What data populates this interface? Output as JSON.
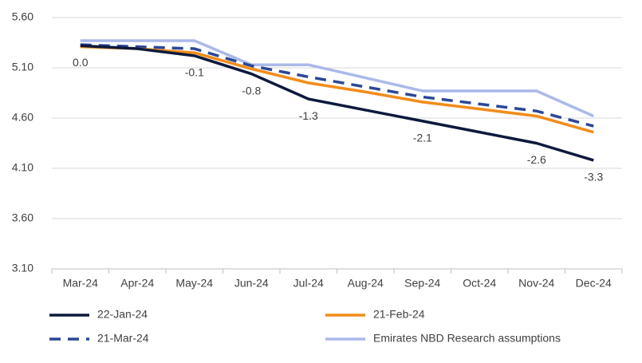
{
  "chart_data": {
    "type": "line",
    "categories": [
      "Mar-24",
      "Apr-24",
      "May-24",
      "Jun-24",
      "Jul-24",
      "Aug-24",
      "Sep-24",
      "Oct-24",
      "Nov-24",
      "Dec-24"
    ],
    "series": [
      {
        "name": "22-Jan-24",
        "color": "#0d1a3d",
        "values": [
          5.32,
          5.29,
          5.22,
          5.04,
          4.79,
          4.68,
          4.57,
          4.46,
          4.35,
          4.18
        ]
      },
      {
        "name": "21-Feb-24",
        "color": "#f28c1a",
        "values": [
          5.31,
          5.29,
          5.25,
          5.09,
          4.95,
          4.86,
          4.76,
          4.69,
          4.62,
          4.46
        ]
      },
      {
        "name": "21-Mar-24",
        "color": "#2b4796",
        "dash": true,
        "values": [
          5.33,
          5.31,
          5.29,
          5.12,
          5.01,
          4.91,
          4.81,
          4.74,
          4.67,
          4.52
        ]
      },
      {
        "name": "Emirates NBD Research assumptions",
        "color": "#aab9e8",
        "values": [
          5.37,
          5.37,
          5.37,
          5.13,
          5.13,
          5.0,
          4.87,
          4.87,
          4.87,
          4.62
        ]
      }
    ],
    "annotations": [
      {
        "x": "Mar-24",
        "text": "0.0"
      },
      {
        "x": "May-24",
        "text": "-0.1"
      },
      {
        "x": "Jun-24",
        "text": "-0.8"
      },
      {
        "x": "Jul-24",
        "text": "-1.3"
      },
      {
        "x": "Sep-24",
        "text": "-2.1"
      },
      {
        "x": "Nov-24",
        "text": "-2.6"
      },
      {
        "x": "Dec-24",
        "text": "-3.3"
      }
    ],
    "ylim": [
      3.1,
      5.6
    ],
    "yticks": [
      {
        "value": 3.1,
        "label": "3.10"
      },
      {
        "value": 3.6,
        "label": "3.60"
      },
      {
        "value": 4.1,
        "label": "4.10"
      },
      {
        "value": 4.6,
        "label": "4.60"
      },
      {
        "value": 5.1,
        "label": "5.10"
      },
      {
        "value": 5.6,
        "label": "5.60"
      }
    ],
    "grid": true,
    "legend": "bottom"
  }
}
